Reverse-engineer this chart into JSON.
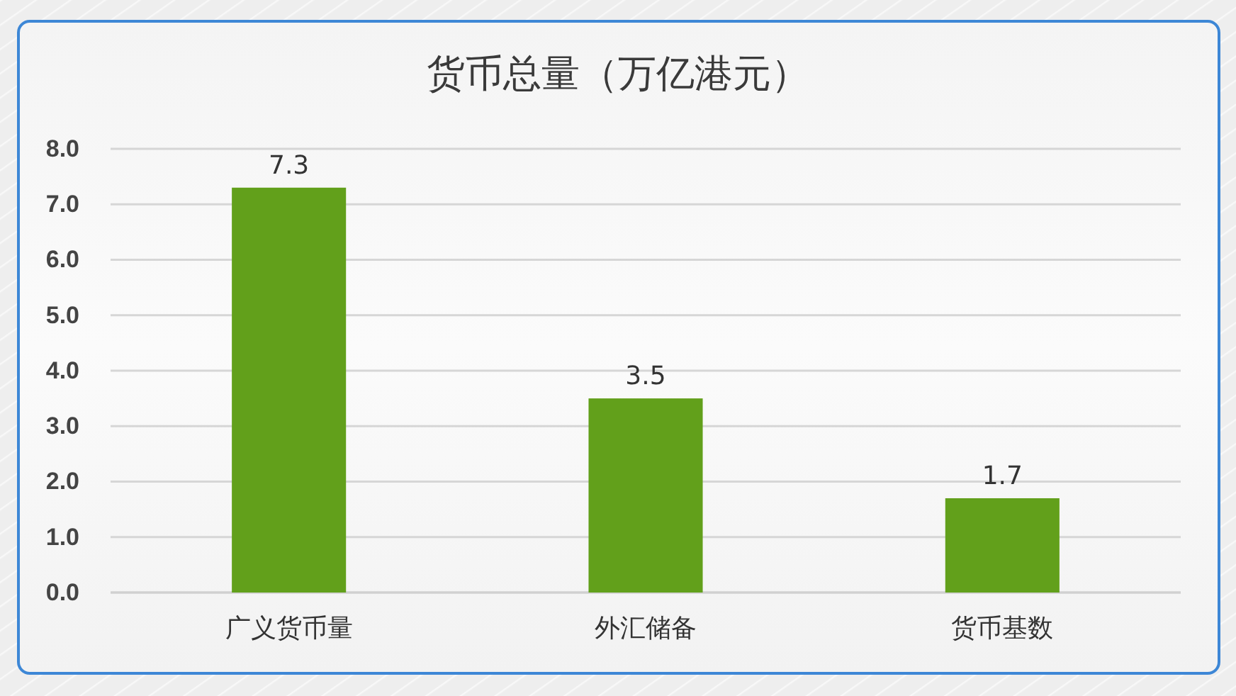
{
  "chart_data": {
    "type": "bar",
    "title": "货币总量（万亿港元）",
    "categories": [
      "广义货币量",
      "外汇储备",
      "货币基数"
    ],
    "values": [
      7.3,
      3.5,
      1.7
    ],
    "color": "#62a01b",
    "ylim": [
      0,
      8
    ],
    "yticks": [
      {
        "value": 0,
        "label": "0.0"
      },
      {
        "value": 1,
        "label": "1.0"
      },
      {
        "value": 2,
        "label": "2.0"
      },
      {
        "value": 3,
        "label": "3.0"
      },
      {
        "value": 4,
        "label": "4.0"
      },
      {
        "value": 5,
        "label": "5.0"
      },
      {
        "value": 6,
        "label": "6.0"
      },
      {
        "value": 7,
        "label": "7.0"
      },
      {
        "value": 8,
        "label": "8.0"
      }
    ],
    "grid": "y",
    "data_labels": true
  }
}
